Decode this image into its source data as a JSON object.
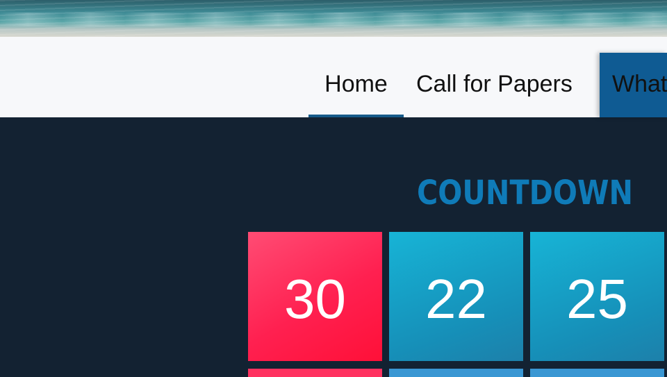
{
  "nav": {
    "items": [
      {
        "label": "Home",
        "active": true
      },
      {
        "label": "Call for Papers",
        "active": false
      },
      {
        "label": "What",
        "active": false
      }
    ]
  },
  "countdown": {
    "title": "COUNTDOWN",
    "tiles": [
      {
        "value": "30",
        "color": "#ff2050"
      },
      {
        "value": "22",
        "color": "#168fb8"
      },
      {
        "value": "25",
        "color": "#168fb8"
      }
    ]
  },
  "colors": {
    "page_background": "#132232",
    "navbar_background": "#f7f8fa",
    "accent": "#0f5b93",
    "title_color": "#0f7bb8"
  }
}
